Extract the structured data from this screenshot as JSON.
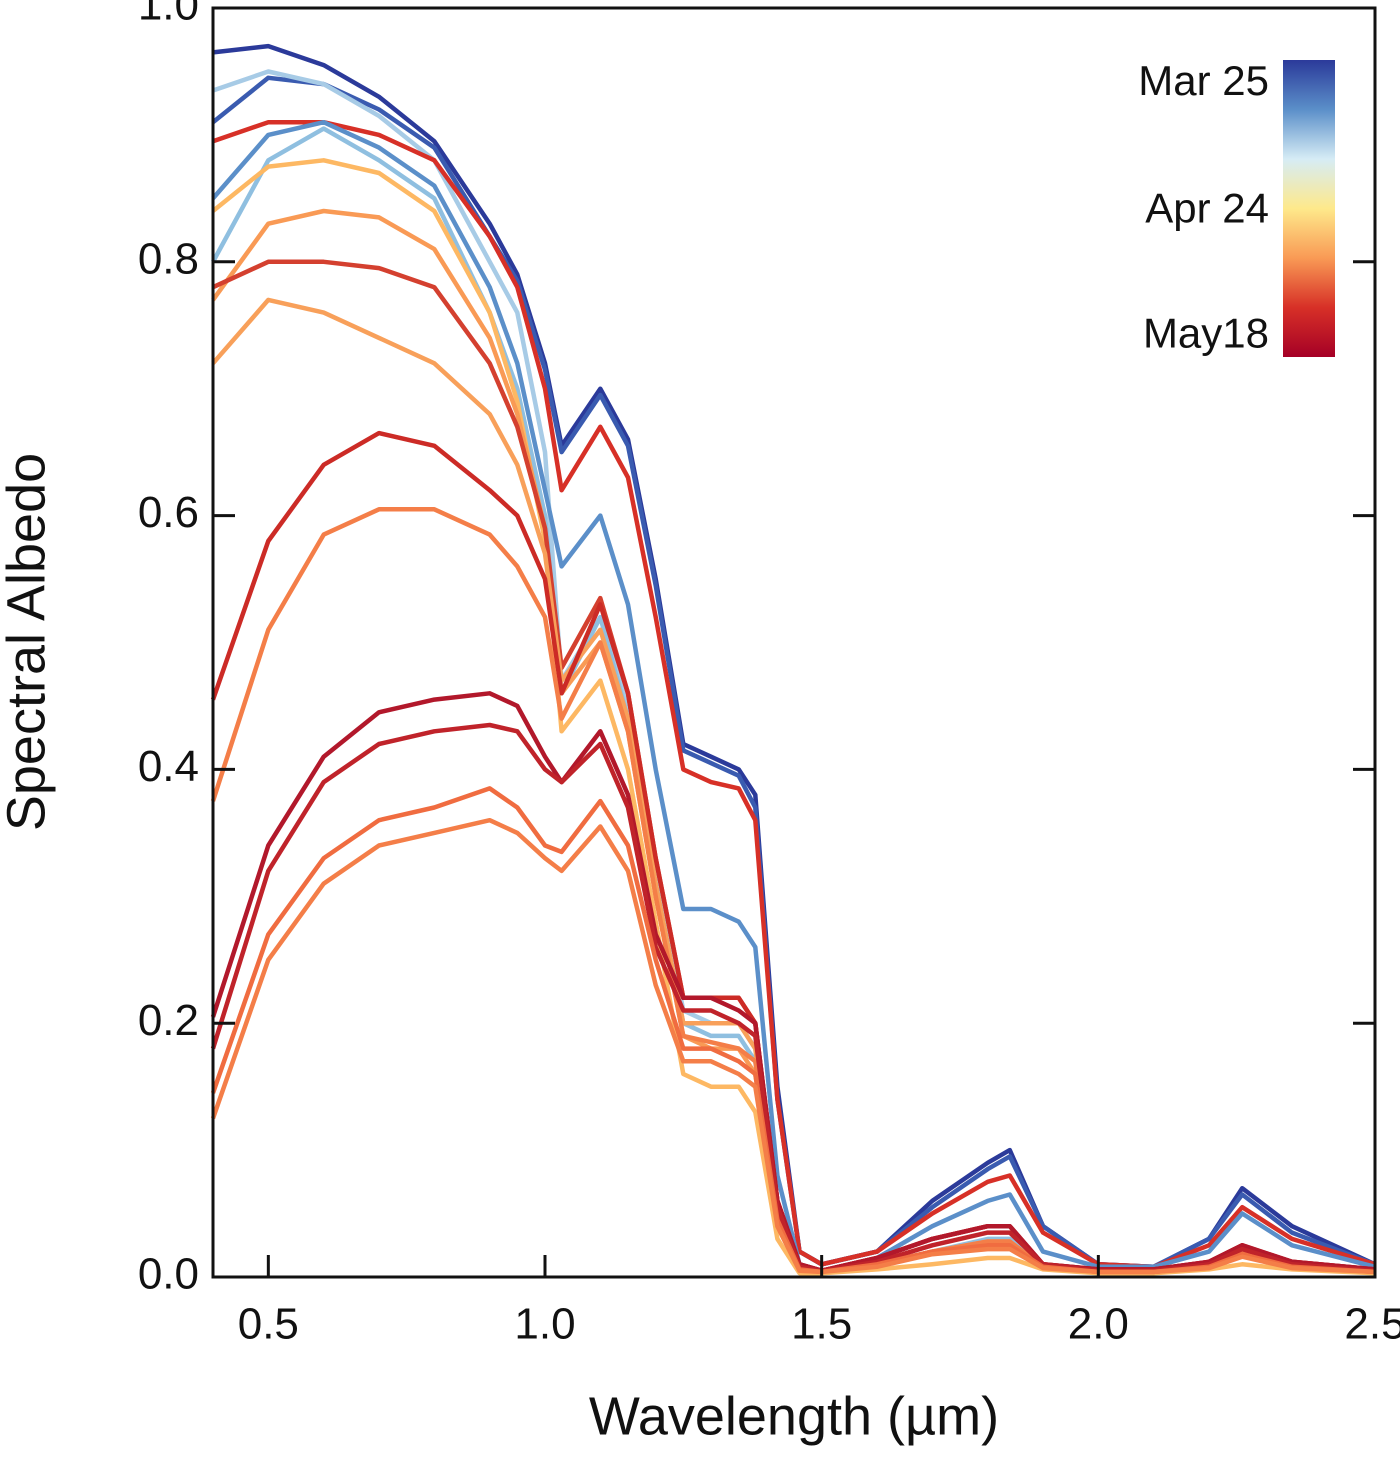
{
  "chart_data": {
    "type": "line",
    "xlabel": "Wavelength (µm)",
    "ylabel": "Spectral Albedo",
    "xlim": [
      0.4,
      2.5
    ],
    "ylim": [
      0,
      1.0
    ],
    "xticks": [
      0.5,
      {
        "value": 1.0,
        "label": "1.0"
      },
      1.5,
      {
        "value": 2.0,
        "label": "2.0"
      },
      2.5
    ],
    "yticks": [
      {
        "value": 0,
        "label": "0.0"
      },
      0.2,
      0.4,
      0.6,
      0.8,
      {
        "value": 1.0,
        "label": "1.0"
      }
    ],
    "x": [
      0.4,
      0.5,
      0.6,
      0.7,
      0.8,
      0.9,
      0.95,
      1.0,
      1.03,
      1.1,
      1.15,
      1.2,
      1.25,
      1.3,
      1.35,
      1.38,
      1.42,
      1.46,
      1.5,
      1.6,
      1.7,
      1.8,
      1.84,
      1.9,
      2.0,
      2.1,
      2.2,
      2.26,
      2.35,
      2.5
    ],
    "colorbar": {
      "colors": [
        "#2b3a9a",
        "#5b8fc9",
        "#d6ecf5",
        "#fee98b",
        "#f99a55",
        "#d73027",
        "#a50026"
      ],
      "labels": [
        "Mar 25",
        "Apr 24",
        "May18"
      ]
    },
    "series": [
      {
        "color": "#2b3a9a",
        "values": [
          0.965,
          0.97,
          0.955,
          0.93,
          0.895,
          0.83,
          0.79,
          0.72,
          0.655,
          0.7,
          0.66,
          0.55,
          0.42,
          0.41,
          0.4,
          0.38,
          0.15,
          0.02,
          0.01,
          0.02,
          0.06,
          0.09,
          0.1,
          0.04,
          0.01,
          0.008,
          0.03,
          0.07,
          0.04,
          0.01
        ]
      },
      {
        "color": "#3a5bb0",
        "values": [
          0.91,
          0.945,
          0.94,
          0.92,
          0.89,
          0.82,
          0.785,
          0.715,
          0.65,
          0.695,
          0.655,
          0.545,
          0.415,
          0.405,
          0.395,
          0.37,
          0.14,
          0.02,
          0.01,
          0.02,
          0.055,
          0.085,
          0.095,
          0.04,
          0.01,
          0.008,
          0.03,
          0.065,
          0.035,
          0.01
        ]
      },
      {
        "color": "#a7cbe6",
        "values": [
          0.935,
          0.95,
          0.94,
          0.915,
          0.88,
          0.8,
          0.76,
          0.65,
          0.47,
          0.52,
          0.45,
          0.32,
          0.21,
          0.2,
          0.2,
          0.18,
          0.05,
          0.005,
          0.005,
          0.01,
          0.02,
          0.025,
          0.028,
          0.01,
          0.005,
          0.005,
          0.01,
          0.02,
          0.01,
          0.005
        ]
      },
      {
        "color": "#d73027",
        "values": [
          0.895,
          0.91,
          0.91,
          0.9,
          0.88,
          0.82,
          0.78,
          0.7,
          0.62,
          0.67,
          0.63,
          0.52,
          0.4,
          0.39,
          0.385,
          0.36,
          0.14,
          0.02,
          0.01,
          0.02,
          0.05,
          0.075,
          0.08,
          0.035,
          0.01,
          0.008,
          0.025,
          0.055,
          0.03,
          0.01
        ]
      },
      {
        "color": "#5b8fc9",
        "values": [
          0.85,
          0.9,
          0.91,
          0.89,
          0.86,
          0.78,
          0.72,
          0.62,
          0.56,
          0.6,
          0.53,
          0.4,
          0.29,
          0.29,
          0.28,
          0.26,
          0.08,
          0.01,
          0.005,
          0.015,
          0.04,
          0.06,
          0.065,
          0.02,
          0.008,
          0.008,
          0.02,
          0.05,
          0.025,
          0.008
        ]
      },
      {
        "color": "#8fbfe0",
        "values": [
          0.8,
          0.88,
          0.905,
          0.88,
          0.85,
          0.76,
          0.7,
          0.6,
          0.46,
          0.52,
          0.44,
          0.31,
          0.2,
          0.19,
          0.19,
          0.17,
          0.05,
          0.005,
          0.005,
          0.01,
          0.02,
          0.03,
          0.03,
          0.01,
          0.005,
          0.005,
          0.01,
          0.02,
          0.01,
          0.005
        ]
      },
      {
        "color": "#fdb863",
        "values": [
          0.84,
          0.875,
          0.88,
          0.87,
          0.84,
          0.76,
          0.69,
          0.58,
          0.43,
          0.47,
          0.4,
          0.28,
          0.16,
          0.15,
          0.15,
          0.13,
          0.03,
          0.003,
          0.003,
          0.006,
          0.01,
          0.015,
          0.015,
          0.006,
          0.003,
          0.003,
          0.006,
          0.01,
          0.006,
          0.003
        ]
      },
      {
        "color": "#f99a55",
        "values": [
          0.77,
          0.83,
          0.84,
          0.835,
          0.81,
          0.74,
          0.68,
          0.59,
          0.46,
          0.5,
          0.43,
          0.3,
          0.19,
          0.18,
          0.18,
          0.16,
          0.04,
          0.005,
          0.004,
          0.01,
          0.02,
          0.025,
          0.025,
          0.008,
          0.004,
          0.004,
          0.008,
          0.018,
          0.008,
          0.004
        ]
      },
      {
        "color": "#d4402f",
        "values": [
          0.78,
          0.8,
          0.8,
          0.795,
          0.78,
          0.72,
          0.67,
          0.59,
          0.48,
          0.535,
          0.46,
          0.33,
          0.22,
          0.22,
          0.22,
          0.2,
          0.06,
          0.01,
          0.005,
          0.015,
          0.03,
          0.04,
          0.04,
          0.01,
          0.006,
          0.006,
          0.012,
          0.025,
          0.012,
          0.006
        ]
      },
      {
        "color": "#f8a05a",
        "values": [
          0.72,
          0.77,
          0.76,
          0.74,
          0.72,
          0.68,
          0.64,
          0.57,
          0.47,
          0.51,
          0.44,
          0.31,
          0.2,
          0.2,
          0.2,
          0.18,
          0.05,
          0.006,
          0.004,
          0.01,
          0.02,
          0.028,
          0.028,
          0.008,
          0.004,
          0.004,
          0.008,
          0.02,
          0.008,
          0.004
        ]
      },
      {
        "color": "#cc2b26",
        "values": [
          0.455,
          0.58,
          0.64,
          0.665,
          0.655,
          0.62,
          0.6,
          0.55,
          0.46,
          0.53,
          0.46,
          0.33,
          0.22,
          0.22,
          0.22,
          0.2,
          0.06,
          0.01,
          0.005,
          0.015,
          0.03,
          0.04,
          0.04,
          0.01,
          0.006,
          0.006,
          0.012,
          0.025,
          0.012,
          0.006
        ]
      },
      {
        "color": "#f47e48",
        "values": [
          0.375,
          0.51,
          0.585,
          0.605,
          0.605,
          0.585,
          0.56,
          0.52,
          0.44,
          0.5,
          0.43,
          0.3,
          0.19,
          0.185,
          0.18,
          0.17,
          0.05,
          0.006,
          0.004,
          0.01,
          0.02,
          0.028,
          0.028,
          0.008,
          0.004,
          0.004,
          0.008,
          0.02,
          0.008,
          0.004
        ]
      },
      {
        "color": "#b2182b",
        "values": [
          0.205,
          0.34,
          0.41,
          0.445,
          0.455,
          0.46,
          0.45,
          0.41,
          0.39,
          0.43,
          0.38,
          0.27,
          0.22,
          0.22,
          0.21,
          0.2,
          0.06,
          0.01,
          0.005,
          0.015,
          0.03,
          0.04,
          0.04,
          0.01,
          0.006,
          0.006,
          0.012,
          0.025,
          0.012,
          0.006
        ]
      },
      {
        "color": "#c0232a",
        "values": [
          0.18,
          0.32,
          0.39,
          0.42,
          0.43,
          0.435,
          0.43,
          0.4,
          0.39,
          0.42,
          0.37,
          0.26,
          0.21,
          0.21,
          0.2,
          0.19,
          0.055,
          0.008,
          0.005,
          0.012,
          0.025,
          0.035,
          0.035,
          0.01,
          0.005,
          0.005,
          0.01,
          0.022,
          0.01,
          0.005
        ]
      },
      {
        "color": "#f06c40",
        "values": [
          0.145,
          0.27,
          0.33,
          0.36,
          0.37,
          0.385,
          0.37,
          0.34,
          0.335,
          0.375,
          0.34,
          0.25,
          0.18,
          0.18,
          0.17,
          0.16,
          0.045,
          0.006,
          0.004,
          0.01,
          0.02,
          0.025,
          0.025,
          0.008,
          0.004,
          0.004,
          0.008,
          0.018,
          0.008,
          0.004
        ]
      },
      {
        "color": "#f47e48",
        "values": [
          0.125,
          0.25,
          0.31,
          0.34,
          0.35,
          0.36,
          0.35,
          0.33,
          0.32,
          0.355,
          0.32,
          0.23,
          0.17,
          0.17,
          0.16,
          0.15,
          0.04,
          0.005,
          0.004,
          0.008,
          0.018,
          0.022,
          0.022,
          0.007,
          0.004,
          0.004,
          0.007,
          0.016,
          0.007,
          0.004
        ]
      }
    ]
  }
}
